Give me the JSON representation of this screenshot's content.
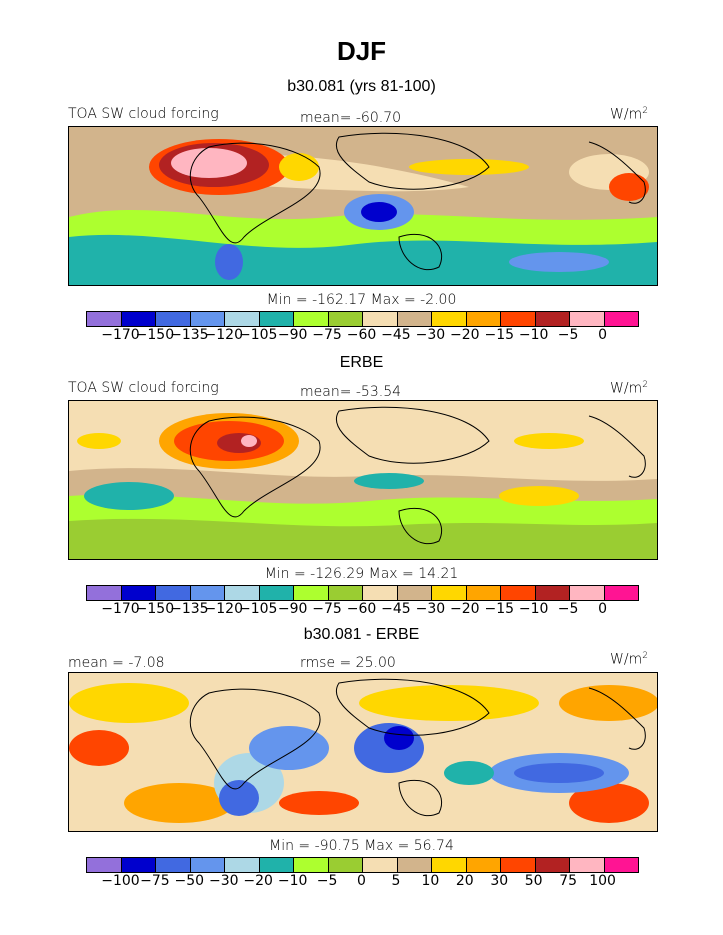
{
  "page": {
    "title": "DJF",
    "subtitle": "b30.081 (yrs 81-100)"
  },
  "panels": [
    {
      "heading": "",
      "left_label": "TOA SW cloud forcing",
      "center_label": "mean=  -60.70",
      "units": "W/m",
      "units_sup": "2",
      "minmax": "Min =  -162.17  Max =   -2.00",
      "colors": [
        "#9370db",
        "#0000cd",
        "#4169e1",
        "#6495ed",
        "#add8e6",
        "#20b2aa",
        "#adff2f",
        "#9acd32",
        "#f5deb3",
        "#d2b48c",
        "#ffd700",
        "#ffa500",
        "#ff4500",
        "#b22222",
        "#ffb6c1",
        "#ff1493"
      ],
      "tick_labels": [
        "-170",
        "-150",
        "-135",
        "-120",
        "-105",
        "-90",
        "-75",
        "-60",
        "-45",
        "-30",
        "-20",
        "-15",
        "-10",
        "-5",
        "0"
      ]
    },
    {
      "heading": "ERBE",
      "left_label": "TOA SW cloud forcing",
      "center_label": "mean=  -53.54",
      "units": "W/m",
      "units_sup": "2",
      "minmax": "Min =  -126.29  Max =   14.21",
      "colors": [
        "#9370db",
        "#0000cd",
        "#4169e1",
        "#6495ed",
        "#add8e6",
        "#20b2aa",
        "#adff2f",
        "#9acd32",
        "#f5deb3",
        "#d2b48c",
        "#ffd700",
        "#ffa500",
        "#ff4500",
        "#b22222",
        "#ffb6c1",
        "#ff1493"
      ],
      "tick_labels": [
        "-170",
        "-150",
        "-135",
        "-120",
        "-105",
        "-90",
        "-75",
        "-60",
        "-45",
        "-30",
        "-20",
        "-15",
        "-10",
        "-5",
        "0"
      ]
    },
    {
      "heading": "b30.081 - ERBE",
      "left_label": "mean =   -7.08",
      "center_label": "rmse =  25.00",
      "units": "W/m",
      "units_sup": "2",
      "minmax": "Min =  -90.75  Max =   56.74",
      "colors": [
        "#9370db",
        "#0000cd",
        "#4169e1",
        "#6495ed",
        "#add8e6",
        "#20b2aa",
        "#adff2f",
        "#9acd32",
        "#f5deb3",
        "#d2b48c",
        "#ffd700",
        "#ffa500",
        "#ff4500",
        "#b22222",
        "#ffb6c1",
        "#ff1493"
      ],
      "tick_labels": [
        "-100",
        "-75",
        "-50",
        "-30",
        "-20",
        "-10",
        "-5",
        "0",
        "5",
        "10",
        "20",
        "30",
        "50",
        "75",
        "100"
      ]
    }
  ],
  "chart_data": [
    {
      "type": "heatmap",
      "title": "b30.081 (yrs 81-100)",
      "variable": "TOA SW cloud forcing",
      "units": "W/m2",
      "mean": -60.7,
      "min": -162.17,
      "max": -2.0,
      "contour_levels": [
        -170,
        -150,
        -135,
        -120,
        -105,
        -90,
        -75,
        -60,
        -45,
        -30,
        -20,
        -15,
        -10,
        -5,
        0
      ]
    },
    {
      "type": "heatmap",
      "title": "ERBE",
      "variable": "TOA SW cloud forcing",
      "units": "W/m2",
      "mean": -53.54,
      "min": -126.29,
      "max": 14.21,
      "contour_levels": [
        -170,
        -150,
        -135,
        -120,
        -105,
        -90,
        -75,
        -60,
        -45,
        -30,
        -20,
        -15,
        -10,
        -5,
        0
      ]
    },
    {
      "type": "heatmap",
      "title": "b30.081 - ERBE",
      "units": "W/m2",
      "mean": -7.08,
      "rmse": 25.0,
      "min": -90.75,
      "max": 56.74,
      "contour_levels": [
        -100,
        -75,
        -50,
        -30,
        -20,
        -10,
        -5,
        0,
        5,
        10,
        20,
        30,
        50,
        75,
        100
      ]
    }
  ]
}
